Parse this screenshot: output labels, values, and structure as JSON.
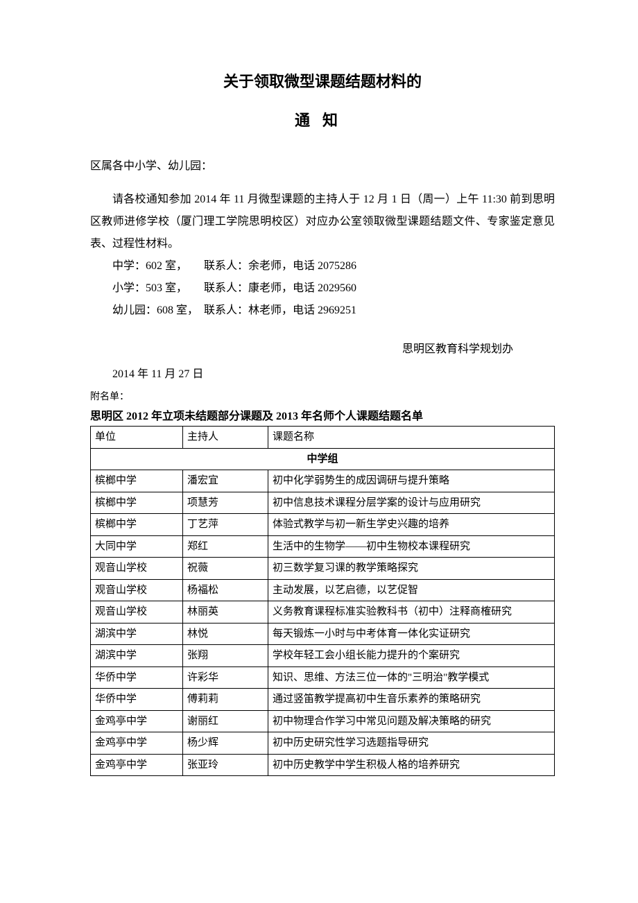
{
  "title": "关于领取微型课题结题材料的",
  "subtitle": "通知",
  "addressee": "区属各中小学、幼儿园：",
  "body": "请各校通知参加 2014 年 11 月微型课题的主持人于 12 月 1 日（周一）上午 11:30 前到思明区教师进修学校（厦门理工学院思明校区）对应办公室领取微型课题结题文件、专家鉴定意见表、过程性材料。",
  "contacts": [
    "中学：602 室，　　联系人：余老师，电话 2075286",
    "小学：503 室，　　联系人：康老师，电话 2029560",
    "幼儿园：608 室，　联系人：林老师，电话 2969251"
  ],
  "signature": "思明区教育科学规划办",
  "date": "2014 年 11 月 27 日",
  "attach_label": "附名单：",
  "list_title": "思明区 2012 年立项未结题部分课题及 2013 年名师个人课题结题名单",
  "headers": {
    "unit": "单位",
    "host": "主持人",
    "topic": "课题名称"
  },
  "group_label": "中学组",
  "rows": [
    {
      "unit": "槟榔中学",
      "host": "潘宏宜",
      "topic": "初中化学弱势生的成因调研与提升策略"
    },
    {
      "unit": "槟榔中学",
      "host": "项慧芳",
      "topic": "初中信息技术课程分层学案的设计与应用研究"
    },
    {
      "unit": "槟榔中学",
      "host": "丁艺萍",
      "topic": "体验式教学与初一新生学史兴趣的培养"
    },
    {
      "unit": "大同中学",
      "host": "郑红",
      "topic": "生活中的生物学——初中生物校本课程研究"
    },
    {
      "unit": "观音山学校",
      "host": "祝薇",
      "topic": "初三数学复习课的教学策略探究"
    },
    {
      "unit": "观音山学校",
      "host": "杨福松",
      "topic": "主动发展，以艺启德，以艺促智"
    },
    {
      "unit": "观音山学校",
      "host": "林丽英",
      "topic": "义务教育课程标准实验教科书（初中）注释商榷研究"
    },
    {
      "unit": "湖滨中学",
      "host": "林悦",
      "topic": "每天锻炼一小时与中考体育一体化实证研究"
    },
    {
      "unit": "湖滨中学",
      "host": "张翔",
      "topic": "学校年轻工会小组长能力提升的个案研究"
    },
    {
      "unit": "华侨中学",
      "host": "许彩华",
      "topic": "知识、思维、方法三位一体的\"三明治\"教学模式"
    },
    {
      "unit": "华侨中学",
      "host": "傅莉莉",
      "topic": "通过竖笛教学提高初中生音乐素养的策略研究"
    },
    {
      "unit": "金鸡亭中学",
      "host": "谢丽红",
      "topic": "初中物理合作学习中常见问题及解决策略的研究"
    },
    {
      "unit": "金鸡亭中学",
      "host": "杨少辉",
      "topic": "初中历史研究性学习选题指导研究"
    },
    {
      "unit": "金鸡亭中学",
      "host": "张亚玲",
      "topic": "初中历史教学中学生积极人格的培养研究"
    }
  ]
}
